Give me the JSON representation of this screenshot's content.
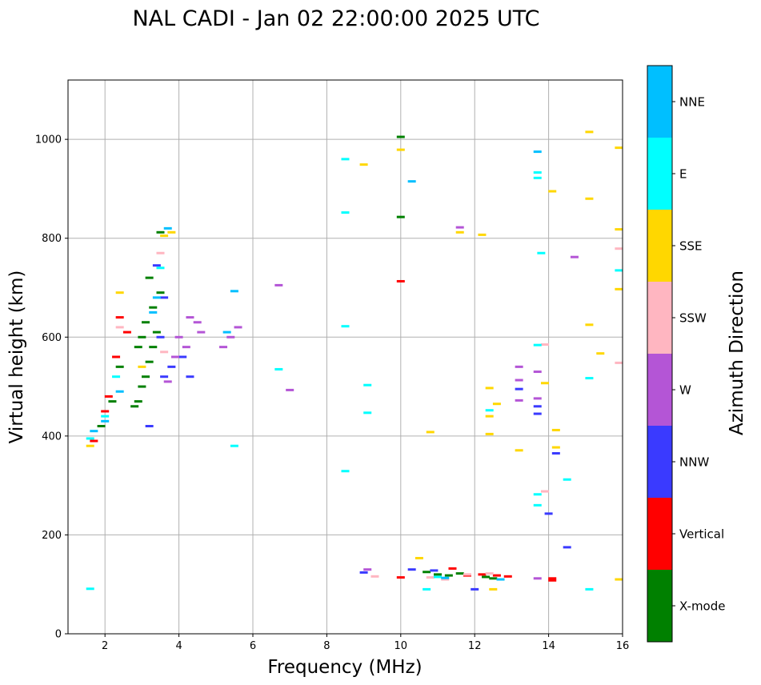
{
  "chart_data": {
    "type": "scatter",
    "title": "NAL CADI - Jan 02 22:00:00 2025 UTC",
    "xlabel": "Frequency (MHz)",
    "ylabel": "Virtual height (km)",
    "xlim": [
      1,
      16
    ],
    "ylim": [
      0,
      1120
    ],
    "xticks": [
      "2",
      "4",
      "6",
      "8",
      "10",
      "12",
      "14",
      "16"
    ],
    "yticks": [
      "0",
      "200",
      "400",
      "600",
      "800",
      "1000"
    ],
    "grid": true,
    "colorbar": {
      "label": "Azimuth Direction",
      "categories": [
        {
          "name": "X-mode",
          "color": "#008000"
        },
        {
          "name": "Vertical",
          "color": "#ff0000"
        },
        {
          "name": "NNW",
          "color": "#3a3aff"
        },
        {
          "name": "W",
          "color": "#b455d6"
        },
        {
          "name": "SSW",
          "color": "#ffb6c1"
        },
        {
          "name": "SSE",
          "color": "#ffd700"
        },
        {
          "name": "E",
          "color": "#00ffff"
        },
        {
          "name": "NNE",
          "color": "#00bfff"
        }
      ]
    },
    "series": [
      {
        "name": "X-mode",
        "points": [
          [
            2.9,
            470
          ],
          [
            3.0,
            500
          ],
          [
            3.1,
            520
          ],
          [
            3.2,
            550
          ],
          [
            3.3,
            580
          ],
          [
            3.4,
            610
          ],
          [
            3.1,
            630
          ],
          [
            3.3,
            660
          ],
          [
            3.5,
            690
          ],
          [
            2.9,
            580
          ],
          [
            3.0,
            600
          ],
          [
            2.8,
            460
          ],
          [
            3.2,
            720
          ],
          [
            3.5,
            812
          ],
          [
            2.2,
            470
          ],
          [
            2.4,
            540
          ],
          [
            1.9,
            420
          ],
          [
            10.0,
            1005
          ],
          [
            10.0,
            843
          ],
          [
            10.7,
            125
          ],
          [
            11.0,
            120
          ],
          [
            11.3,
            118
          ],
          [
            11.6,
            122
          ],
          [
            12.3,
            115
          ],
          [
            12.5,
            112
          ]
        ]
      },
      {
        "name": "Vertical",
        "points": [
          [
            2.4,
            640
          ],
          [
            2.3,
            560
          ],
          [
            2.0,
            450
          ],
          [
            2.1,
            480
          ],
          [
            2.6,
            610
          ],
          [
            1.7,
            390
          ],
          [
            10.0,
            713
          ],
          [
            10.0,
            114
          ],
          [
            11.4,
            132
          ],
          [
            11.8,
            118
          ],
          [
            12.2,
            120
          ],
          [
            12.6,
            118
          ],
          [
            12.9,
            116
          ],
          [
            14.1,
            112
          ],
          [
            14.1,
            108
          ]
        ]
      },
      {
        "name": "NNW",
        "points": [
          [
            3.6,
            520
          ],
          [
            3.8,
            540
          ],
          [
            3.5,
            600
          ],
          [
            4.3,
            520
          ],
          [
            4.1,
            560
          ],
          [
            3.4,
            745
          ],
          [
            3.6,
            680
          ],
          [
            3.2,
            420
          ],
          [
            9.0,
            124
          ],
          [
            10.3,
            130
          ],
          [
            10.9,
            128
          ],
          [
            12.0,
            90
          ],
          [
            14.2,
            365
          ],
          [
            14.5,
            175
          ],
          [
            14.0,
            243
          ],
          [
            13.7,
            445
          ],
          [
            13.7,
            460
          ],
          [
            13.2,
            495
          ]
        ]
      },
      {
        "name": "W",
        "points": [
          [
            3.9,
            560
          ],
          [
            4.0,
            600
          ],
          [
            4.3,
            640
          ],
          [
            4.6,
            610
          ],
          [
            5.2,
            580
          ],
          [
            5.4,
            600
          ],
          [
            5.6,
            620
          ],
          [
            3.7,
            510
          ],
          [
            4.2,
            580
          ],
          [
            4.5,
            630
          ],
          [
            6.7,
            705
          ],
          [
            7.0,
            493
          ],
          [
            11.6,
            822
          ],
          [
            14.7,
            762
          ],
          [
            13.7,
            530
          ],
          [
            13.7,
            476
          ],
          [
            13.2,
            540
          ],
          [
            13.2,
            513
          ],
          [
            13.2,
            472
          ],
          [
            9.1,
            130
          ],
          [
            13.7,
            112
          ]
        ]
      },
      {
        "name": "SSW",
        "points": [
          [
            2.4,
            620
          ],
          [
            3.6,
            570
          ],
          [
            3.5,
            770
          ],
          [
            9.3,
            116
          ],
          [
            10.8,
            114
          ],
          [
            11.2,
            110
          ],
          [
            11.8,
            120
          ],
          [
            13.9,
            585
          ],
          [
            13.9,
            288
          ],
          [
            15.9,
            779
          ],
          [
            15.9,
            548
          ],
          [
            12.4,
            122
          ]
        ]
      },
      {
        "name": "SSE",
        "points": [
          [
            2.4,
            690
          ],
          [
            3.0,
            540
          ],
          [
            3.6,
            805
          ],
          [
            3.8,
            812
          ],
          [
            1.6,
            380
          ],
          [
            9.0,
            949
          ],
          [
            10.0,
            979
          ],
          [
            10.8,
            408
          ],
          [
            11.6,
            812
          ],
          [
            12.2,
            807
          ],
          [
            12.4,
            497
          ],
          [
            12.4,
            440
          ],
          [
            12.4,
            404
          ],
          [
            12.6,
            465
          ],
          [
            13.2,
            371
          ],
          [
            13.9,
            507
          ],
          [
            14.1,
            895
          ],
          [
            14.2,
            412
          ],
          [
            14.2,
            377
          ],
          [
            15.1,
            1015
          ],
          [
            15.1,
            880
          ],
          [
            15.1,
            625
          ],
          [
            15.4,
            567
          ],
          [
            15.9,
            983
          ],
          [
            15.9,
            818
          ],
          [
            15.9,
            697
          ],
          [
            15.9,
            110
          ],
          [
            10.5,
            153
          ],
          [
            12.5,
            90
          ]
        ]
      },
      {
        "name": "E",
        "points": [
          [
            1.6,
            395
          ],
          [
            2.0,
            440
          ],
          [
            2.3,
            520
          ],
          [
            3.5,
            740
          ],
          [
            5.5,
            380
          ],
          [
            6.7,
            535
          ],
          [
            8.5,
            960
          ],
          [
            8.5,
            852
          ],
          [
            8.5,
            622
          ],
          [
            8.5,
            329
          ],
          [
            9.1,
            503
          ],
          [
            9.1,
            447
          ],
          [
            13.7,
            933
          ],
          [
            13.7,
            922
          ],
          [
            13.7,
            584
          ],
          [
            13.8,
            770
          ],
          [
            13.7,
            282
          ],
          [
            13.7,
            260
          ],
          [
            14.5,
            312
          ],
          [
            15.1,
            517
          ],
          [
            15.1,
            90
          ],
          [
            15.9,
            735
          ],
          [
            12.4,
            452
          ],
          [
            10.7,
            90
          ],
          [
            11.0,
            115
          ],
          [
            1.6,
            91
          ]
        ]
      },
      {
        "name": "NNE",
        "points": [
          [
            1.7,
            410
          ],
          [
            2.0,
            430
          ],
          [
            2.4,
            490
          ],
          [
            3.3,
            650
          ],
          [
            3.4,
            680
          ],
          [
            3.7,
            820
          ],
          [
            5.5,
            693
          ],
          [
            5.3,
            610
          ],
          [
            10.3,
            915
          ],
          [
            11.2,
            113
          ],
          [
            12.7,
            110
          ],
          [
            13.7,
            975
          ]
        ]
      }
    ]
  }
}
